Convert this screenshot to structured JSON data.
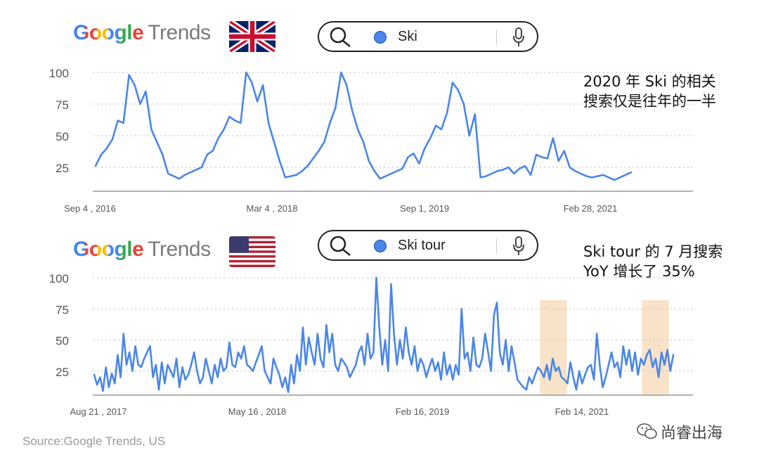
{
  "source": "Source:Google Trends, US",
  "watermark": "尚睿出海",
  "panels": [
    {
      "logo": {
        "google": "Google",
        "trends": "Trends"
      },
      "flag": "uk-flag-icon",
      "search_term": "Ski",
      "annotation": [
        "2020 年 Ski 的相关",
        "搜索仅是往年的一半"
      ],
      "chart_data": {
        "type": "line",
        "x_ticks": [
          "Sep 4 , 2016",
          "Mar 4 , 2018",
          "Sep 1, 2019",
          "Feb 28, 2021"
        ],
        "y_ticks": [
          25,
          50,
          75,
          100
        ],
        "ylim": [
          0,
          100
        ],
        "grid": true,
        "line_color": "#4a86e8",
        "series": [
          {
            "values": [
              26,
              35,
              40,
              47,
              62,
              60,
              98,
              90,
              75,
              85,
              55,
              45,
              35,
              20,
              18,
              16,
              19,
              21,
              23,
              25,
              35,
              38,
              48,
              55,
              65,
              62,
              60,
              100,
              92,
              77,
              90,
              60,
              45,
              30,
              17,
              18,
              19,
              22,
              26,
              32,
              38,
              45,
              60,
              72,
              100,
              90,
              70,
              55,
              45,
              30,
              22,
              16,
              18,
              20,
              22,
              24,
              33,
              36,
              28,
              40,
              48,
              58,
              55,
              68,
              92,
              86,
              75,
              50,
              67,
              17,
              18,
              20,
              22,
              23,
              25,
              20,
              24,
              26,
              19,
              35,
              33,
              32,
              48,
              30,
              38,
              25,
              22,
              20,
              18,
              17,
              18,
              19,
              17,
              15,
              17,
              19,
              21
            ]
          }
        ]
      }
    },
    {
      "logo": {
        "google": "Google",
        "trends": "Trends"
      },
      "flag": "us-flag-icon",
      "search_term": "Ski tour",
      "annotation": [
        "Ski tour 的 7 月搜索",
        "YoY 增长了 35%"
      ],
      "chart_data": {
        "type": "line",
        "x_ticks": [
          "Aug 21 , 2017",
          "May 16 , 2018",
          "Feb 16, 2019",
          "Feb 14, 2021"
        ],
        "y_ticks": [
          25,
          50,
          75,
          100
        ],
        "ylim": [
          0,
          100
        ],
        "grid": true,
        "line_color": "#4a86e8",
        "highlight_color": "#f9e3c8",
        "series": [
          {
            "values": [
              22,
              14,
              20,
              9,
              28,
              12,
              23,
              15,
              38,
              20,
              55,
              30,
              40,
              25,
              45,
              30,
              28,
              35,
              40,
              45,
              20,
              30,
              10,
              32,
              15,
              30,
              25,
              20,
              35,
              12,
              28,
              18,
              22,
              30,
              40,
              25,
              15,
              20,
              35,
              25,
              15,
              30,
              20,
              35,
              25,
              28,
              48,
              30,
              28,
              40,
              35,
              45,
              30,
              28,
              25,
              32,
              38,
              45,
              25,
              20,
              15,
              35,
              28,
              22,
              12,
              20,
              8,
              30,
              15,
              38,
              25,
              60,
              30,
              52,
              40,
              30,
              55,
              35,
              28,
              62,
              40,
              55,
              30,
              25,
              35,
              32,
              28,
              20,
              25,
              30,
              40,
              45,
              30,
              55,
              35,
              40,
              100,
              60,
              30,
              50,
              25,
              95,
              55,
              30,
              50,
              35,
              60,
              40,
              30,
              45,
              25,
              35,
              30,
              20,
              28,
              35,
              25,
              32,
              18,
              40,
              22,
              30,
              18,
              30,
              22,
              75,
              35,
              40,
              25,
              52,
              30,
              28,
              35,
              55,
              40,
              25,
              70,
              80,
              40,
              30,
              50,
              25,
              45,
              32,
              18,
              15,
              12,
              10,
              20,
              15,
              22,
              28,
              25,
              20,
              30,
              18,
              35,
              25,
              28,
              20,
              18,
              15,
              32,
              20,
              10,
              25,
              15,
              22,
              28,
              30,
              18,
              55,
              30,
              12,
              20,
              30,
              40,
              28,
              32,
              20,
              45,
              30,
              42,
              25,
              40,
              22,
              35,
              30,
              38,
              42,
              28,
              35,
              20,
              40,
              30,
              42,
              25,
              38
            ]
          }
        ],
        "highlight_ranges": [
          [
            0.745,
            0.79
          ],
          [
            0.915,
            0.96
          ]
        ]
      }
    }
  ]
}
